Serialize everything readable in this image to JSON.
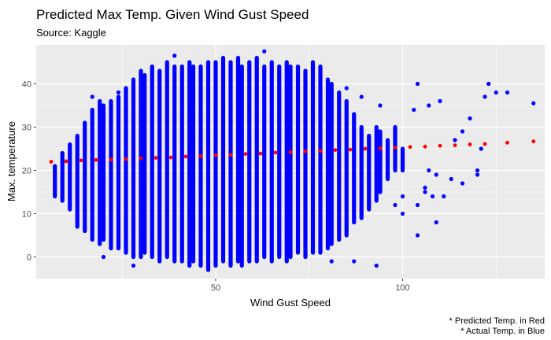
{
  "chart_data": {
    "type": "scatter",
    "title": "Predicted Max Temp. Given Wind Gust Speed",
    "subtitle": "Source: Kaggle",
    "xlabel": "Wind Gust Speed",
    "ylabel": "Max. temperature",
    "xlim": [
      2,
      138
    ],
    "ylim": [
      -5,
      49
    ],
    "xticks": [
      50,
      100
    ],
    "yticks": [
      0,
      10,
      20,
      30,
      40
    ],
    "grid": true,
    "background": "#ebebeb",
    "captions": [
      "* Predicted Temp. in Red",
      "* Actual Temp. in Blue"
    ],
    "series": [
      {
        "role": "actual",
        "color": "#0000ff",
        "columns": [
          {
            "x": 7,
            "ymin": 14,
            "ymax": 21,
            "extra": []
          },
          {
            "x": 9,
            "ymin": 13,
            "ymax": 24,
            "extra": []
          },
          {
            "x": 11,
            "ymin": 11,
            "ymax": 26,
            "extra": []
          },
          {
            "x": 13,
            "ymin": 7,
            "ymax": 28,
            "extra": []
          },
          {
            "x": 15,
            "ymin": 6,
            "ymax": 31,
            "extra": []
          },
          {
            "x": 17,
            "ymin": 4,
            "ymax": 34,
            "extra": [
              37
            ]
          },
          {
            "x": 19,
            "ymin": 3,
            "ymax": 36,
            "extra": []
          },
          {
            "x": 20,
            "ymin": 4,
            "ymax": 35,
            "extra": [
              0
            ]
          },
          {
            "x": 22,
            "ymin": 2,
            "ymax": 36,
            "extra": []
          },
          {
            "x": 24,
            "ymin": 2,
            "ymax": 37,
            "extra": [
              38
            ]
          },
          {
            "x": 26,
            "ymin": 1,
            "ymax": 39,
            "extra": []
          },
          {
            "x": 28,
            "ymin": 0,
            "ymax": 41,
            "extra": [
              -2
            ]
          },
          {
            "x": 30,
            "ymin": 0,
            "ymax": 43,
            "extra": []
          },
          {
            "x": 31,
            "ymin": 1,
            "ymax": 42,
            "extra": []
          },
          {
            "x": 33,
            "ymin": 0,
            "ymax": 44,
            "extra": []
          },
          {
            "x": 35,
            "ymin": -1,
            "ymax": 43,
            "extra": []
          },
          {
            "x": 37,
            "ymin": 0,
            "ymax": 45,
            "extra": []
          },
          {
            "x": 39,
            "ymin": -1,
            "ymax": 44,
            "extra": [
              46.5
            ]
          },
          {
            "x": 41,
            "ymin": -1,
            "ymax": 44,
            "extra": []
          },
          {
            "x": 43,
            "ymin": -2,
            "ymax": 45,
            "extra": []
          },
          {
            "x": 44,
            "ymin": -1,
            "ymax": 44,
            "extra": []
          },
          {
            "x": 46,
            "ymin": -2,
            "ymax": 44,
            "extra": []
          },
          {
            "x": 48,
            "ymin": -3,
            "ymax": 45,
            "extra": []
          },
          {
            "x": 50,
            "ymin": -2,
            "ymax": 45,
            "extra": []
          },
          {
            "x": 52,
            "ymin": -1,
            "ymax": 46,
            "extra": []
          },
          {
            "x": 54,
            "ymin": -2,
            "ymax": 45,
            "extra": []
          },
          {
            "x": 56,
            "ymin": -1,
            "ymax": 46,
            "extra": []
          },
          {
            "x": 57,
            "ymin": -2,
            "ymax": 44,
            "extra": []
          },
          {
            "x": 59,
            "ymin": -1,
            "ymax": 45,
            "extra": []
          },
          {
            "x": 61,
            "ymin": -1,
            "ymax": 46,
            "extra": []
          },
          {
            "x": 63,
            "ymin": 0,
            "ymax": 44,
            "extra": [
              47.5
            ]
          },
          {
            "x": 65,
            "ymin": -1,
            "ymax": 45,
            "extra": []
          },
          {
            "x": 67,
            "ymin": 0,
            "ymax": 44,
            "extra": []
          },
          {
            "x": 69,
            "ymin": -1,
            "ymax": 45,
            "extra": []
          },
          {
            "x": 70,
            "ymin": 0,
            "ymax": 44,
            "extra": []
          },
          {
            "x": 72,
            "ymin": 1,
            "ymax": 44,
            "extra": []
          },
          {
            "x": 74,
            "ymin": 0,
            "ymax": 43,
            "extra": []
          },
          {
            "x": 76,
            "ymin": 1,
            "ymax": 45,
            "extra": []
          },
          {
            "x": 78,
            "ymin": 1,
            "ymax": 44,
            "extra": []
          },
          {
            "x": 80,
            "ymin": 2,
            "ymax": 41,
            "extra": []
          },
          {
            "x": 81,
            "ymin": 3,
            "ymax": 40,
            "extra": [
              -1
            ]
          },
          {
            "x": 83,
            "ymin": 4,
            "ymax": 38,
            "extra": []
          },
          {
            "x": 85,
            "ymin": 5,
            "ymax": 36,
            "extra": [
              39
            ]
          },
          {
            "x": 87,
            "ymin": 8,
            "ymax": 33,
            "extra": [
              -1
            ]
          },
          {
            "x": 89,
            "ymin": 9,
            "ymax": 30,
            "extra": [
              37
            ]
          },
          {
            "x": 91,
            "ymin": 11,
            "ymax": 28,
            "extra": []
          },
          {
            "x": 93,
            "ymin": 13,
            "ymax": 30,
            "extra": [
              -2
            ]
          },
          {
            "x": 94,
            "ymin": 15,
            "ymax": 29,
            "extra": [
              35
            ]
          },
          {
            "x": 96,
            "ymin": 18,
            "ymax": 27,
            "extra": []
          },
          {
            "x": 98,
            "ymin": 20,
            "ymax": 30,
            "extra": [
              12
            ]
          },
          {
            "x": 100,
            "ymin": 20,
            "ymax": 25,
            "extra": [
              14,
              10
            ]
          }
        ],
        "points": [
          {
            "x": 104,
            "y": 5
          },
          {
            "x": 103,
            "y": 34
          },
          {
            "x": 104,
            "y": 40
          },
          {
            "x": 104,
            "y": 12
          },
          {
            "x": 106,
            "y": 15
          },
          {
            "x": 106,
            "y": 16
          },
          {
            "x": 107,
            "y": 35
          },
          {
            "x": 107,
            "y": 20
          },
          {
            "x": 108,
            "y": 14
          },
          {
            "x": 109,
            "y": 19
          },
          {
            "x": 109,
            "y": 8
          },
          {
            "x": 110,
            "y": 36
          },
          {
            "x": 111,
            "y": 14
          },
          {
            "x": 113,
            "y": 18
          },
          {
            "x": 114,
            "y": 27
          },
          {
            "x": 116,
            "y": 29
          },
          {
            "x": 116,
            "y": 17
          },
          {
            "x": 118,
            "y": 32
          },
          {
            "x": 120,
            "y": 20
          },
          {
            "x": 120,
            "y": 19
          },
          {
            "x": 121,
            "y": 25
          },
          {
            "x": 122,
            "y": 37
          },
          {
            "x": 123,
            "y": 40
          },
          {
            "x": 125,
            "y": 38
          },
          {
            "x": 128,
            "y": 38
          },
          {
            "x": 135,
            "y": 35.5
          }
        ]
      },
      {
        "role": "predicted",
        "color": "#ff0000",
        "x": [
          6,
          10,
          14,
          18,
          22,
          26,
          30,
          34,
          38,
          42,
          46,
          50,
          54,
          58,
          62,
          66,
          70,
          74,
          78,
          82,
          86,
          90,
          94,
          98,
          102,
          106,
          110,
          114,
          118,
          122,
          128,
          135
        ],
        "y": [
          22.0,
          22.1,
          22.3,
          22.4,
          22.5,
          22.6,
          22.8,
          22.9,
          23.0,
          23.2,
          23.3,
          23.5,
          23.6,
          23.8,
          23.9,
          24.1,
          24.2,
          24.4,
          24.5,
          24.7,
          24.8,
          25.0,
          25.1,
          25.3,
          25.4,
          25.5,
          25.7,
          25.8,
          26.0,
          26.1,
          26.4,
          26.7
        ]
      }
    ]
  }
}
